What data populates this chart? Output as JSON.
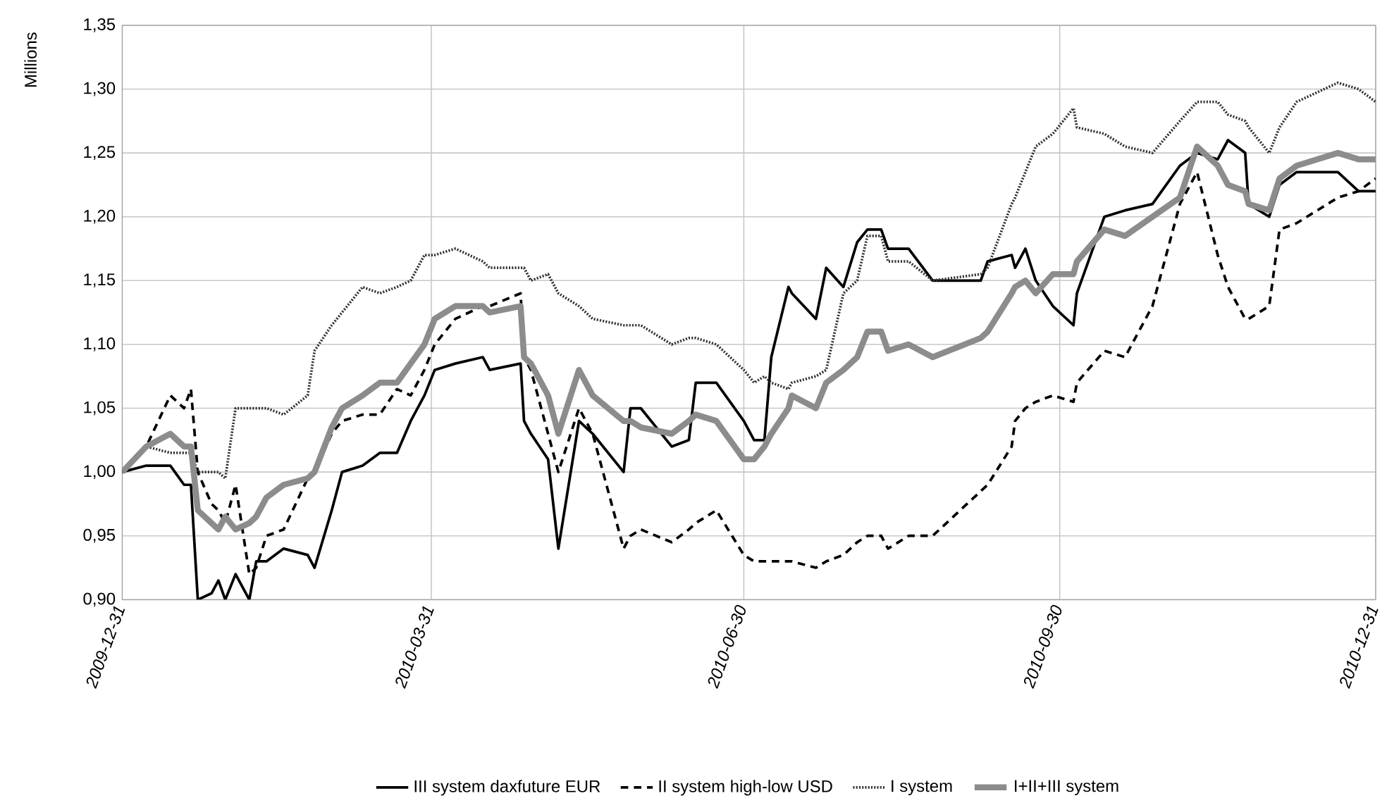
{
  "chart_data": {
    "type": "line",
    "ylabel": "Millions",
    "x": [
      "2009-12-31",
      "2010-01-07",
      "2010-01-14",
      "2010-01-18",
      "2010-01-20",
      "2010-01-22",
      "2010-01-26",
      "2010-01-28",
      "2010-01-30",
      "2010-02-02",
      "2010-02-06",
      "2010-02-08",
      "2010-02-11",
      "2010-02-16",
      "2010-02-23",
      "2010-02-25",
      "2010-03-02",
      "2010-03-05",
      "2010-03-11",
      "2010-03-16",
      "2010-03-21",
      "2010-03-25",
      "2010-03-29",
      "2010-04-01",
      "2010-04-07",
      "2010-04-15",
      "2010-04-17",
      "2010-04-26",
      "2010-04-27",
      "2010-04-29",
      "2010-05-04",
      "2010-05-07",
      "2010-05-13",
      "2010-05-17",
      "2010-05-26",
      "2010-05-28",
      "2010-05-31",
      "2010-06-09",
      "2010-06-14",
      "2010-06-16",
      "2010-06-22",
      "2010-06-30",
      "2010-07-03",
      "2010-07-06",
      "2010-07-08",
      "2010-07-13",
      "2010-07-14",
      "2010-07-21",
      "2010-07-24",
      "2010-07-29",
      "2010-08-02",
      "2010-08-05",
      "2010-08-09",
      "2010-08-11",
      "2010-08-17",
      "2010-08-24",
      "2010-09-07",
      "2010-09-09",
      "2010-09-16",
      "2010-09-17",
      "2010-09-20",
      "2010-09-23",
      "2010-09-28",
      "2010-10-04",
      "2010-10-05",
      "2010-10-13",
      "2010-10-19",
      "2010-10-27",
      "2010-11-04",
      "2010-11-09",
      "2010-11-15",
      "2010-11-18",
      "2010-11-23",
      "2010-11-24",
      "2010-11-30",
      "2010-12-03",
      "2010-12-08",
      "2010-12-20",
      "2010-12-26",
      "2010-12-31"
    ],
    "series": [
      {
        "name": "III  system  daxfuture  EUR",
        "color": "#000000",
        "line_style": "solid",
        "values": [
          1.0,
          1.005,
          1.005,
          0.99,
          0.99,
          0.9,
          0.905,
          0.915,
          0.9,
          0.92,
          0.9,
          0.93,
          0.93,
          0.94,
          0.935,
          0.925,
          0.97,
          1.0,
          1.005,
          1.015,
          1.015,
          1.04,
          1.06,
          1.08,
          1.085,
          1.09,
          1.08,
          1.085,
          1.04,
          1.03,
          1.01,
          0.94,
          1.04,
          1.03,
          1.0,
          1.05,
          1.05,
          1.02,
          1.025,
          1.07,
          1.07,
          1.04,
          1.025,
          1.025,
          1.09,
          1.145,
          1.14,
          1.12,
          1.16,
          1.145,
          1.18,
          1.19,
          1.19,
          1.175,
          1.175,
          1.15,
          1.15,
          1.165,
          1.17,
          1.16,
          1.175,
          1.15,
          1.13,
          1.115,
          1.14,
          1.2,
          1.205,
          1.21,
          1.24,
          1.25,
          1.245,
          1.26,
          1.25,
          1.21,
          1.2,
          1.225,
          1.235,
          1.235,
          1.22,
          1.22
        ]
      },
      {
        "name": "II  system  high-low  USD",
        "color": "#000000",
        "line_style": "dashed",
        "values": [
          1.0,
          1.02,
          1.06,
          1.05,
          1.065,
          1.0,
          0.975,
          0.97,
          0.96,
          0.99,
          0.92,
          0.925,
          0.95,
          0.955,
          0.995,
          1.0,
          1.03,
          1.04,
          1.045,
          1.045,
          1.065,
          1.06,
          1.08,
          1.1,
          1.12,
          1.13,
          1.13,
          1.14,
          1.09,
          1.08,
          1.03,
          1.0,
          1.05,
          1.03,
          0.94,
          0.95,
          0.955,
          0.945,
          0.955,
          0.96,
          0.97,
          0.935,
          0.93,
          0.93,
          0.93,
          0.93,
          0.93,
          0.925,
          0.93,
          0.935,
          0.945,
          0.95,
          0.95,
          0.94,
          0.95,
          0.95,
          0.985,
          0.99,
          1.02,
          1.04,
          1.05,
          1.055,
          1.06,
          1.055,
          1.07,
          1.095,
          1.09,
          1.13,
          1.21,
          1.235,
          1.17,
          1.145,
          1.12,
          1.12,
          1.13,
          1.19,
          1.195,
          1.215,
          1.22,
          1.23
        ]
      },
      {
        "name": "I system",
        "color": "#333333",
        "line_style": "dotted",
        "values": [
          1.0,
          1.02,
          1.015,
          1.015,
          1.015,
          1.0,
          1.0,
          1.0,
          0.995,
          1.05,
          1.05,
          1.05,
          1.05,
          1.045,
          1.06,
          1.095,
          1.115,
          1.125,
          1.145,
          1.14,
          1.145,
          1.15,
          1.17,
          1.17,
          1.175,
          1.165,
          1.16,
          1.16,
          1.16,
          1.15,
          1.155,
          1.14,
          1.13,
          1.12,
          1.115,
          1.115,
          1.115,
          1.1,
          1.105,
          1.105,
          1.1,
          1.08,
          1.07,
          1.075,
          1.07,
          1.065,
          1.07,
          1.075,
          1.08,
          1.14,
          1.15,
          1.185,
          1.185,
          1.165,
          1.165,
          1.15,
          1.155,
          1.16,
          1.21,
          1.215,
          1.235,
          1.255,
          1.265,
          1.285,
          1.27,
          1.265,
          1.255,
          1.25,
          1.275,
          1.29,
          1.29,
          1.28,
          1.275,
          1.27,
          1.25,
          1.27,
          1.29,
          1.305,
          1.3,
          1.29
        ]
      },
      {
        "name": "I+II+III  system",
        "color": "#8c8c8c",
        "line_style": "solid",
        "values": [
          1.0,
          1.02,
          1.03,
          1.02,
          1.02,
          0.97,
          0.96,
          0.955,
          0.965,
          0.955,
          0.96,
          0.965,
          0.98,
          0.99,
          0.995,
          1.0,
          1.035,
          1.05,
          1.06,
          1.07,
          1.07,
          1.085,
          1.1,
          1.12,
          1.13,
          1.13,
          1.125,
          1.13,
          1.09,
          1.085,
          1.06,
          1.03,
          1.08,
          1.06,
          1.04,
          1.04,
          1.035,
          1.03,
          1.04,
          1.045,
          1.04,
          1.01,
          1.01,
          1.02,
          1.03,
          1.05,
          1.06,
          1.05,
          1.07,
          1.08,
          1.09,
          1.11,
          1.11,
          1.095,
          1.1,
          1.09,
          1.105,
          1.11,
          1.14,
          1.145,
          1.15,
          1.14,
          1.155,
          1.155,
          1.165,
          1.19,
          1.185,
          1.2,
          1.215,
          1.255,
          1.24,
          1.225,
          1.22,
          1.21,
          1.205,
          1.23,
          1.24,
          1.25,
          1.245,
          1.245
        ]
      }
    ],
    "xlim": [
      "2009-12-31",
      "2010-12-31"
    ],
    "xticks": [
      "2009-12-31",
      "2010-03-31",
      "2010-06-30",
      "2010-09-30",
      "2010-12-31"
    ],
    "ylim": [
      0.9,
      1.35
    ],
    "yticks": [
      {
        "value": 0.9,
        "label": "0,90"
      },
      {
        "value": 0.95,
        "label": "0,95"
      },
      {
        "value": 1.0,
        "label": "1,00"
      },
      {
        "value": 1.05,
        "label": "1,05"
      },
      {
        "value": 1.1,
        "label": "1,10"
      },
      {
        "value": 1.15,
        "label": "1,15"
      },
      {
        "value": 1.2,
        "label": "1,20"
      },
      {
        "value": 1.25,
        "label": "1,25"
      },
      {
        "value": 1.3,
        "label": "1,30"
      },
      {
        "value": 1.35,
        "label": "1,35"
      }
    ],
    "grid": true,
    "legend": "bottom",
    "marker": "none"
  }
}
